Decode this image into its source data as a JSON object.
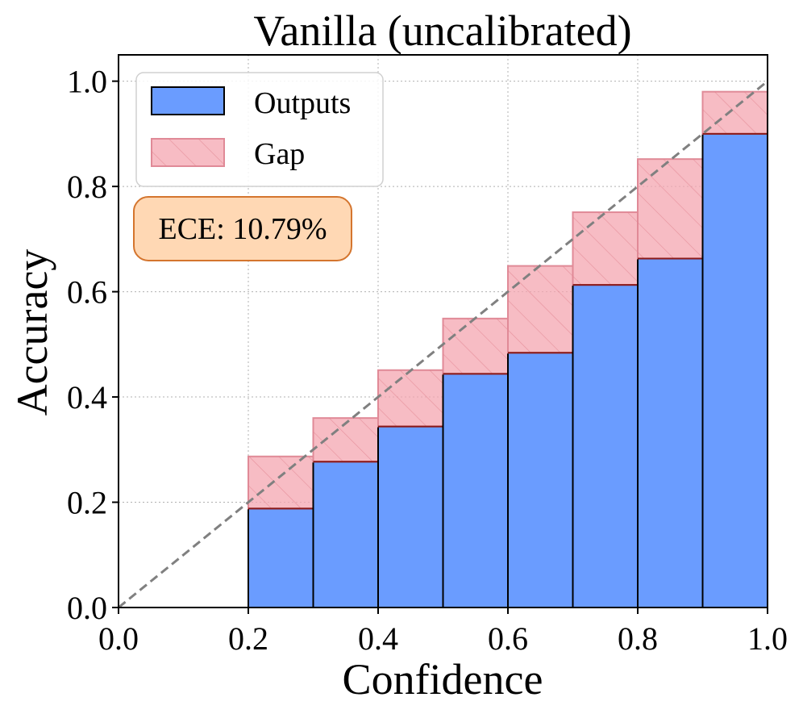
{
  "chart_data": {
    "type": "bar",
    "title": "Vanilla (uncalibrated)",
    "xlabel": "Confidence",
    "ylabel": "Accuracy",
    "xlim": [
      0,
      1
    ],
    "ylim": [
      0,
      1.05
    ],
    "xticks": [
      "0.0",
      "0.2",
      "0.4",
      "0.6",
      "0.8",
      "1.0"
    ],
    "yticks": [
      "0.0",
      "0.2",
      "0.4",
      "0.6",
      "0.8",
      "1.0"
    ],
    "grid": true,
    "legend_position": "top-left",
    "bin_edges": [
      0.0,
      0.1,
      0.2,
      0.3,
      0.4,
      0.5,
      0.6,
      0.7,
      0.8,
      0.9,
      1.0
    ],
    "series": [
      {
        "name": "Outputs",
        "color": "#6a9cff",
        "values": [
          0,
          0,
          0.188,
          0.277,
          0.344,
          0.444,
          0.484,
          0.613,
          0.663,
          0.9
        ]
      },
      {
        "name": "Gap",
        "color": "#f4a6b0",
        "bottom": [
          0,
          0,
          0.188,
          0.277,
          0.344,
          0.444,
          0.484,
          0.613,
          0.663,
          0.9
        ],
        "top": [
          0,
          0,
          0.287,
          0.36,
          0.451,
          0.549,
          0.649,
          0.751,
          0.852,
          0.98
        ]
      }
    ],
    "reference_line": {
      "style": "dashed",
      "color": "#808080",
      "from": [
        0,
        0
      ],
      "to": [
        1,
        1
      ]
    },
    "annotation": {
      "text": "ECE: 10.79%",
      "facecolor": "#ffd8b4",
      "edgecolor": "#d4752e"
    }
  }
}
